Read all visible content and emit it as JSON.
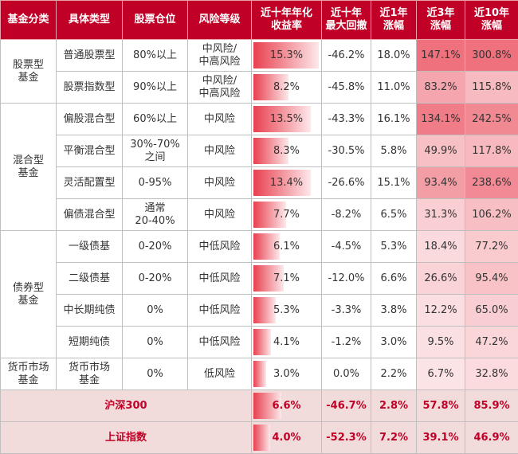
{
  "header": [
    "基金分类",
    "具体类型",
    "股票仓位",
    "风险等级",
    "近十年年化\n收益率",
    "近十年\n最大回撤",
    "近1年\n涨幅",
    "近3年\n涨幅",
    "近10年\n涨幅"
  ],
  "groups": [
    {
      "category": "股票型\n基金",
      "rows": [
        [
          "普通股票型",
          "80%以上",
          "中风险/\n中高风险",
          "15.3%",
          "-46.2%",
          "18.0%",
          "147.1%",
          "300.8%"
        ],
        [
          "股票指数型",
          "90%以上",
          "中风险/\n中高风险",
          "8.2%",
          "-45.8%",
          "11.0%",
          "83.2%",
          "115.8%"
        ]
      ]
    },
    {
      "category": "混合型\n基金",
      "rows": [
        [
          "偏股混合型",
          "60%以上",
          "中风险",
          "13.5%",
          "-43.3%",
          "16.1%",
          "134.1%",
          "242.5%"
        ],
        [
          "平衡混合型",
          "30%-70%\n之间",
          "中风险",
          "8.3%",
          "-30.5%",
          "5.8%",
          "49.9%",
          "117.8%"
        ],
        [
          "灵活配置型",
          "0-95%",
          "中风险",
          "13.4%",
          "-26.6%",
          "15.1%",
          "93.4%",
          "238.6%"
        ],
        [
          "偏债混合型",
          "通常\n20-40%",
          "中风险",
          "7.7%",
          "-8.2%",
          "6.5%",
          "31.3%",
          "106.2%"
        ]
      ]
    },
    {
      "category": "债券型\n基金",
      "rows": [
        [
          "一级债基",
          "0-20%",
          "中低风险",
          "6.1%",
          "-4.5%",
          "5.3%",
          "18.4%",
          "77.2%"
        ],
        [
          "二级债基",
          "0-20%",
          "中低风险",
          "7.1%",
          "-12.0%",
          "6.6%",
          "26.6%",
          "95.4%"
        ],
        [
          "中长期纯债",
          "0%",
          "中低风险",
          "5.3%",
          "-3.3%",
          "3.8%",
          "12.2%",
          "65.0%"
        ],
        [
          "短期纯债",
          "0%",
          "中低风险",
          "4.1%",
          "-1.2%",
          "3.0%",
          "9.5%",
          "47.2%"
        ]
      ]
    },
    {
      "category": "货币市场\n基金",
      "rows": [
        [
          "货币市场\n基金",
          "0%",
          "低风险",
          "3.0%",
          "0.0%",
          "2.2%",
          "6.7%",
          "32.8%"
        ]
      ]
    }
  ],
  "summary": [
    {
      "name": "沪深300",
      "values": [
        "6.6%",
        "-46.7%",
        "2.8%",
        "57.8%",
        "85.9%"
      ]
    },
    {
      "name": "上证指数",
      "values": [
        "4.0%",
        "-52.3%",
        "7.2%",
        "39.1%",
        "46.9%"
      ]
    }
  ]
}
